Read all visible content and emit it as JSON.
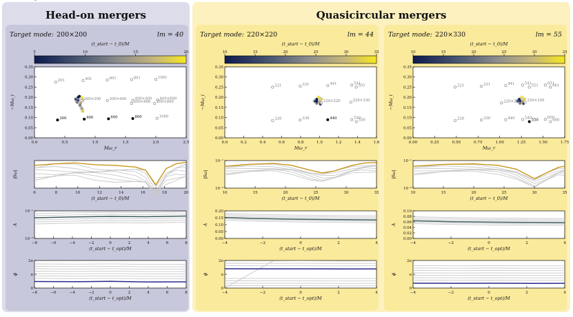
{
  "figure": {
    "left_title": "Head-on mergers",
    "right_title": "Quasicircular mergers",
    "colors": {
      "left_bg": "#dcdcea",
      "left_panel": "#c8c8dc",
      "right_bg": "#fdf1c0",
      "right_panel": "#faea9c",
      "selected_curve": "#c8961a",
      "amp_line": "#3c5a5a",
      "phase_line": "#28288c",
      "other_curve": "#c8c8c8"
    }
  },
  "columns": [
    {
      "id": "c200",
      "target_prefix": "Target mode:",
      "target_mode": "200×200",
      "lm": "lm = 40",
      "colorbar": {
        "label": "(t_start − t_0)/M",
        "ticks": [
          "5",
          "10",
          "15",
          "20"
        ],
        "range": [
          5,
          20
        ]
      },
      "freq": {
        "xlabel": "Mω_r",
        "ylabel": "−Mω_i",
        "xlim": [
          0,
          2.5
        ],
        "ylim": [
          0,
          0.35
        ],
        "xticks": [
          "0.0",
          "0.5",
          "1.0",
          "1.5",
          "2.0",
          "2.5"
        ],
        "yticks": [
          "0.00",
          "0.05",
          "0.10",
          "0.15",
          "0.20",
          "0.25",
          "0.30",
          "0.35"
        ],
        "modes": [
          {
            "label": "200",
            "x": 0.38,
            "y": 0.088,
            "filled": true
          },
          {
            "label": "400",
            "x": 0.82,
            "y": 0.092,
            "filled": true
          },
          {
            "label": "600",
            "x": 1.22,
            "y": 0.094,
            "filled": true
          },
          {
            "label": "800",
            "x": 1.62,
            "y": 0.095,
            "filled": true
          },
          {
            "label": "1000",
            "x": 2.02,
            "y": 0.096,
            "filled": false
          },
          {
            "label": "201",
            "x": 0.35,
            "y": 0.275,
            "filled": false
          },
          {
            "label": "401",
            "x": 0.8,
            "y": 0.282,
            "filled": false
          },
          {
            "label": "601",
            "x": 1.2,
            "y": 0.285,
            "filled": false
          },
          {
            "label": "801",
            "x": 1.6,
            "y": 0.287,
            "filled": false
          },
          {
            "label": "1001",
            "x": 2.0,
            "y": 0.288,
            "filled": false
          },
          {
            "label": "200×200",
            "x": 0.78,
            "y": 0.183,
            "filled": false
          },
          {
            "label": "200×400",
            "x": 1.2,
            "y": 0.183,
            "filled": false
          },
          {
            "label": "400×400",
            "x": 1.62,
            "y": 0.185,
            "filled": false
          },
          {
            "label": "400×600",
            "x": 2.03,
            "y": 0.186,
            "filled": false
          },
          {
            "label": "200×600",
            "x": 1.6,
            "y": 0.17,
            "filled": false
          },
          {
            "label": "200×800",
            "x": 1.98,
            "y": 0.17,
            "filled": false
          }
        ],
        "track": [
          [
            0.72,
            0.2
          ],
          [
            0.68,
            0.19
          ],
          [
            0.7,
            0.175
          ],
          [
            0.76,
            0.17
          ],
          [
            0.8,
            0.185
          ],
          [
            0.78,
            0.2
          ],
          [
            0.74,
            0.205
          ],
          [
            0.72,
            0.185
          ],
          [
            0.75,
            0.16
          ],
          [
            0.78,
            0.145
          ],
          [
            0.8,
            0.13
          ]
        ]
      },
      "error": {
        "ylabel": "|δω|",
        "xlabel": "(t_start − t_0)/M",
        "xlim": [
          5,
          20
        ],
        "ylim_log": [
          -1.6,
          -0.75
        ],
        "xticks": [
          "6",
          "8",
          "10",
          "12",
          "14",
          "16",
          "18",
          "20"
        ],
        "yticks": [
          "10⁻¹"
        ],
        "selected": [
          [
            5,
            -0.9
          ],
          [
            7,
            -0.85
          ],
          [
            9,
            -0.82
          ],
          [
            11,
            -0.88
          ],
          [
            13,
            -0.9
          ],
          [
            15,
            -0.95
          ],
          [
            16,
            -1.05
          ],
          [
            17,
            -1.5
          ],
          [
            18,
            -1.0
          ],
          [
            19,
            -0.85
          ],
          [
            20,
            -0.8
          ]
        ]
      },
      "amplitude": {
        "ylabel": "A",
        "xlabel": "(t_start − t_opt)/M",
        "xlim": [
          -8.5,
          8.5
        ],
        "ylim_log": [
          -2.4,
          -0.8
        ],
        "xticks": [
          "−8",
          "−6",
          "−4",
          "−2",
          "0",
          "2",
          "4",
          "6",
          "8"
        ],
        "yticks": [
          "10⁻²",
          "10⁻¹"
        ],
        "line": [
          [
            -8.5,
            -1.2
          ],
          [
            -4,
            -1.15
          ],
          [
            0,
            -1.12
          ],
          [
            4,
            -1.14
          ],
          [
            8.5,
            -1.1
          ]
        ]
      },
      "phase": {
        "ylabel": "ϕ",
        "xlabel": "(t_start − t_opt)/M",
        "xlim": [
          -8.5,
          8.5
        ],
        "ylim": [
          0,
          6.283
        ],
        "xticks": [
          "−8",
          "−6",
          "−4",
          "−2",
          "0",
          "2",
          "4",
          "6",
          "8"
        ],
        "yticks": [
          "2π",
          "π",
          "0"
        ],
        "line": [
          [
            -8.5,
            1.5
          ],
          [
            -4,
            1.45
          ],
          [
            0,
            1.52
          ],
          [
            4,
            1.4
          ],
          [
            8.5,
            1.42
          ]
        ]
      }
    },
    {
      "id": "c220a",
      "target_prefix": "Target mode:",
      "target_mode": "220×220",
      "lm": "lm = 44",
      "colorbar": {
        "label": "(t_start − t_0)/M",
        "ticks": [
          "10",
          "15",
          "20",
          "25",
          "30",
          "35"
        ],
        "range": [
          10,
          35
        ]
      },
      "freq": {
        "xlabel": "Mω_r",
        "ylabel": "−Mω_i",
        "xlim": [
          0,
          1.65
        ],
        "ylim": [
          0,
          0.35
        ],
        "xticks": [
          "0.0",
          "0.2",
          "0.4",
          "0.6",
          "0.8",
          "1.0",
          "1.2",
          "1.4",
          "1.6"
        ],
        "yticks": [
          "0.00",
          "0.05",
          "0.10",
          "0.15",
          "0.20",
          "0.25",
          "0.30",
          "0.35"
        ],
        "modes": [
          {
            "label": "220",
            "x": 0.52,
            "y": 0.086,
            "filled": false
          },
          {
            "label": "330",
            "x": 0.82,
            "y": 0.088,
            "filled": false
          },
          {
            "label": "440",
            "x": 1.12,
            "y": 0.089,
            "filled": true
          },
          {
            "label": "540",
            "x": 1.38,
            "y": 0.09,
            "filled": false
          },
          {
            "label": "550",
            "x": 1.43,
            "y": 0.08,
            "filled": false
          },
          {
            "label": "221",
            "x": 0.52,
            "y": 0.25,
            "filled": false
          },
          {
            "label": "331",
            "x": 0.82,
            "y": 0.255,
            "filled": false
          },
          {
            "label": "441",
            "x": 1.12,
            "y": 0.258,
            "filled": false
          },
          {
            "label": "541",
            "x": 1.38,
            "y": 0.26,
            "filled": false
          },
          {
            "label": "551",
            "x": 1.43,
            "y": 0.25,
            "filled": false
          },
          {
            "label": "220×220",
            "x": 1.05,
            "y": 0.173,
            "filled": false
          },
          {
            "label": "220×330",
            "x": 1.37,
            "y": 0.176,
            "filled": false
          }
        ],
        "track": [
          [
            1.0,
            0.19
          ],
          [
            0.98,
            0.18
          ],
          [
            1.0,
            0.17
          ],
          [
            1.03,
            0.175
          ],
          [
            1.05,
            0.19
          ],
          [
            1.02,
            0.2
          ],
          [
            1.0,
            0.18
          ],
          [
            1.04,
            0.165
          ]
        ]
      },
      "error": {
        "ylabel": "|δω|",
        "xlabel": "(t_start − t_0)/M",
        "xlim": [
          10,
          35
        ],
        "ylim_log": [
          -2.2,
          -0.75
        ],
        "xticks": [
          "10",
          "15",
          "20",
          "25",
          "30",
          "35"
        ],
        "yticks": [
          "10⁻²",
          "10⁻¹"
        ],
        "selected": [
          [
            10,
            -1.05
          ],
          [
            14,
            -0.95
          ],
          [
            18,
            -0.9
          ],
          [
            21,
            -1.0
          ],
          [
            24,
            -1.25
          ],
          [
            26,
            -1.4
          ],
          [
            28,
            -1.3
          ],
          [
            31,
            -1.0
          ],
          [
            33,
            -0.88
          ],
          [
            35,
            -0.85
          ]
        ]
      },
      "amplitude": {
        "ylabel": "A",
        "xlabel": "(t_start − t_opt)/M",
        "xlim": [
          -5.5,
          5.5
        ],
        "ylim": [
          0,
          0.2
        ],
        "xticks": [
          "−4",
          "−2",
          "0",
          "2",
          "4"
        ],
        "yticks": [
          "0.00",
          "0.05",
          "0.10",
          "0.15",
          "0.20"
        ],
        "line": [
          [
            -5.5,
            0.152
          ],
          [
            -3,
            0.144
          ],
          [
            0,
            0.139
          ],
          [
            3,
            0.136
          ],
          [
            5.5,
            0.134
          ]
        ]
      },
      "phase": {
        "ylabel": "ϕ",
        "xlabel": "(t_start − t_opt)/M",
        "xlim": [
          -5.5,
          5.5
        ],
        "ylim": [
          0,
          6.283
        ],
        "xticks": [
          "−4",
          "−2",
          "0",
          "2",
          "4"
        ],
        "yticks": [
          "2π",
          "π",
          "0"
        ],
        "line": [
          [
            -5.5,
            4.4
          ],
          [
            -2,
            4.38
          ],
          [
            0,
            4.39
          ],
          [
            3,
            4.36
          ],
          [
            5.5,
            4.37
          ]
        ]
      }
    },
    {
      "id": "c220b",
      "target_prefix": "Target mode:",
      "target_mode": "220×330",
      "lm": "lm = 55",
      "colorbar": {
        "label": "(t_start − t_0)/M",
        "ticks": [
          "10",
          "15",
          "20",
          "25",
          "30",
          "35"
        ],
        "range": [
          10,
          35
        ]
      },
      "freq": {
        "xlabel": "Mω_r",
        "ylabel": "−Mω_i",
        "xlim": [
          0,
          1.8
        ],
        "ylim": [
          0,
          0.35
        ],
        "xticks": [
          "0.00",
          "0.25",
          "0.50",
          "0.75",
          "1.00",
          "1.25",
          "1.50",
          "1.75"
        ],
        "yticks": [
          "0.00",
          "0.05",
          "0.10",
          "0.15",
          "0.20",
          "0.25",
          "0.30",
          "0.35"
        ],
        "modes": [
          {
            "label": "220",
            "x": 0.5,
            "y": 0.086,
            "filled": false
          },
          {
            "label": "330",
            "x": 0.81,
            "y": 0.088,
            "filled": false
          },
          {
            "label": "440",
            "x": 1.1,
            "y": 0.089,
            "filled": false
          },
          {
            "label": "540",
            "x": 1.3,
            "y": 0.09,
            "filled": false
          },
          {
            "label": "550",
            "x": 1.38,
            "y": 0.08,
            "filled": true
          },
          {
            "label": "650",
            "x": 1.57,
            "y": 0.091,
            "filled": false
          },
          {
            "label": "660",
            "x": 1.63,
            "y": 0.08,
            "filled": false
          },
          {
            "label": "221",
            "x": 0.5,
            "y": 0.25,
            "filled": false
          },
          {
            "label": "331",
            "x": 0.81,
            "y": 0.255,
            "filled": false
          },
          {
            "label": "441",
            "x": 1.1,
            "y": 0.258,
            "filled": false
          },
          {
            "label": "541",
            "x": 1.3,
            "y": 0.26,
            "filled": false
          },
          {
            "label": "551",
            "x": 1.38,
            "y": 0.25,
            "filled": false
          },
          {
            "label": "651",
            "x": 1.57,
            "y": 0.26,
            "filled": false
          },
          {
            "label": "661",
            "x": 1.63,
            "y": 0.25,
            "filled": false
          },
          {
            "label": "220×220",
            "x": 1.05,
            "y": 0.172,
            "filled": false
          },
          {
            "label": "220×330",
            "x": 1.33,
            "y": 0.176,
            "filled": false
          }
        ],
        "track": [
          [
            1.26,
            0.19
          ],
          [
            1.24,
            0.18
          ],
          [
            1.27,
            0.17
          ],
          [
            1.3,
            0.178
          ],
          [
            1.32,
            0.19
          ],
          [
            1.29,
            0.2
          ],
          [
            1.27,
            0.182
          ],
          [
            1.31,
            0.168
          ]
        ]
      },
      "error": {
        "ylabel": "|δω|",
        "xlabel": "(t_start − t_0)/M",
        "xlim": [
          10,
          35
        ],
        "ylim_log": [
          -2.2,
          -0.75
        ],
        "xticks": [
          "10",
          "15",
          "20",
          "25",
          "30",
          "35"
        ],
        "yticks": [
          "10⁻²",
          "10⁻¹"
        ],
        "selected": [
          [
            10,
            -1.05
          ],
          [
            15,
            -0.95
          ],
          [
            20,
            -0.92
          ],
          [
            24,
            -1.0
          ],
          [
            27,
            -1.2
          ],
          [
            30,
            -1.7
          ],
          [
            32,
            -1.4
          ],
          [
            34,
            -1.1
          ],
          [
            35,
            -1.05
          ]
        ]
      },
      "amplitude": {
        "ylabel": "A",
        "xlabel": "(t_start − t_opt)/M",
        "xlim": [
          -5.5,
          5.5
        ],
        "ylim": [
          0,
          0.1
        ],
        "xticks": [
          "−4",
          "−2",
          "0",
          "2",
          "4"
        ],
        "yticks": [
          "0.00",
          "0.02",
          "0.04",
          "0.06",
          "0.08",
          "0.10"
        ],
        "line": [
          [
            -5.5,
            0.064
          ],
          [
            -3,
            0.061
          ],
          [
            0,
            0.059
          ],
          [
            3,
            0.058
          ],
          [
            5.5,
            0.057
          ]
        ]
      },
      "phase": {
        "ylabel": "ϕ",
        "xlabel": "(t_start − t_opt)/M",
        "xlim": [
          -5.5,
          5.5
        ],
        "ylim": [
          0,
          6.283
        ],
        "xticks": [
          "−4",
          "−2",
          "0",
          "2",
          "4"
        ],
        "yticks": [
          "2π",
          "π",
          "0"
        ],
        "line": [
          [
            -5.5,
            1.1
          ],
          [
            -2,
            1.08
          ],
          [
            0,
            1.1
          ],
          [
            3,
            1.07
          ],
          [
            5.5,
            1.08
          ]
        ]
      }
    }
  ]
}
